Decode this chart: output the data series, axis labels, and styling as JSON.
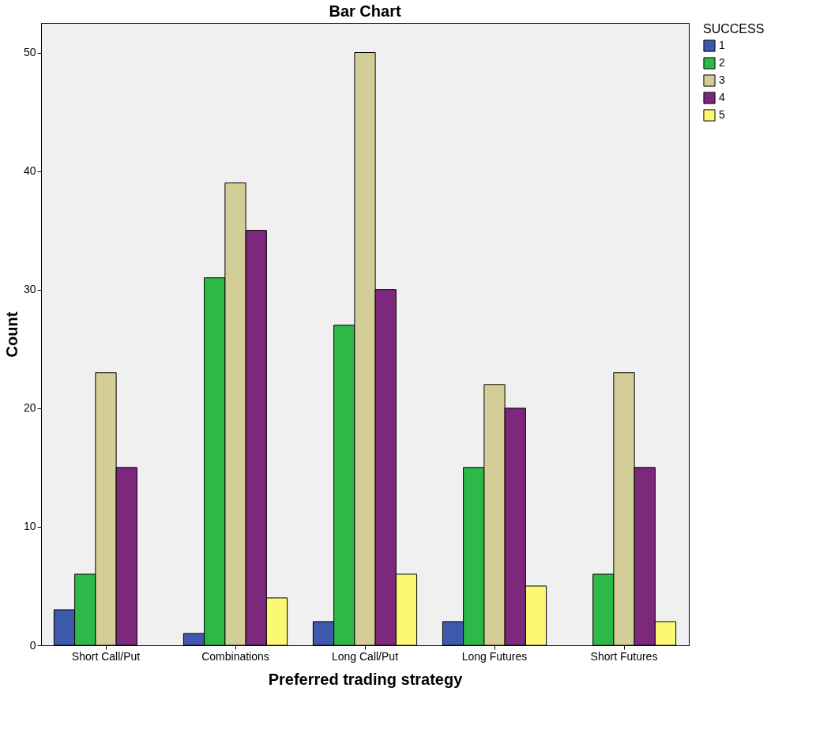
{
  "chart_data": {
    "type": "bar",
    "title": "Bar Chart",
    "xlabel": "Preferred trading strategy",
    "ylabel": "Count",
    "legend_title": "SUCCESS",
    "categories": [
      "Short Call/Put",
      "Combinations",
      "Long Call/Put",
      "Long Futures",
      "Short Futures"
    ],
    "series": [
      {
        "name": "1",
        "color": "#3e58ac",
        "values": [
          3,
          1,
          2,
          2,
          null
        ]
      },
      {
        "name": "2",
        "color": "#2eb848",
        "values": [
          6,
          31,
          27,
          15,
          6
        ]
      },
      {
        "name": "3",
        "color": "#d3ce97",
        "values": [
          23,
          39,
          50,
          22,
          23
        ]
      },
      {
        "name": "4",
        "color": "#7c287d",
        "values": [
          15,
          35,
          30,
          20,
          15
        ]
      },
      {
        "name": "5",
        "color": "#fbf873",
        "values": [
          null,
          4,
          6,
          5,
          2
        ]
      }
    ],
    "ylim": [
      0,
      52.5
    ],
    "yticks": [
      0,
      10,
      20,
      30,
      40,
      50
    ],
    "grid": false,
    "legend": "top right"
  }
}
